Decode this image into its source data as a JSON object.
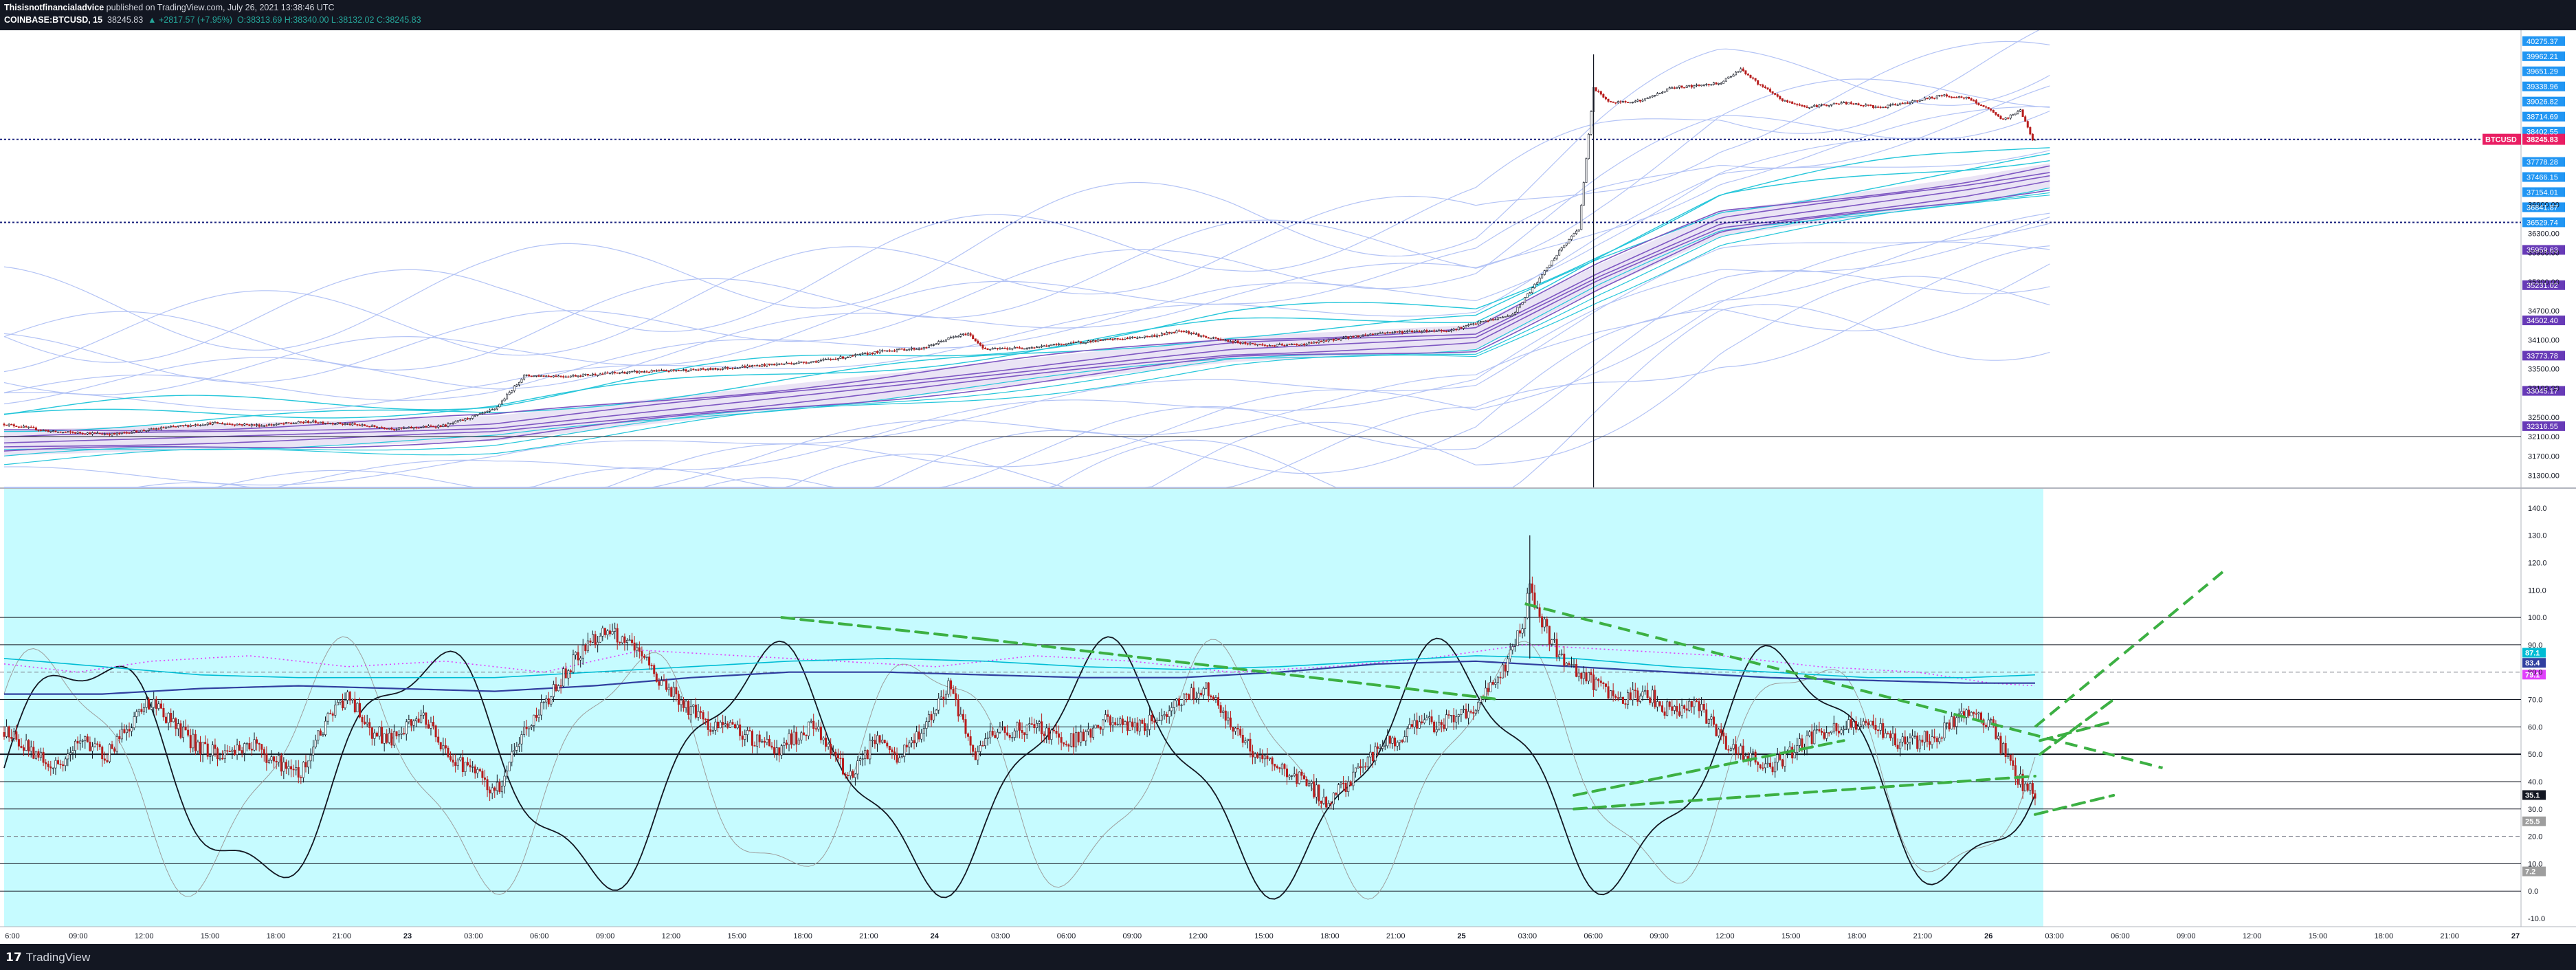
{
  "header": {
    "publisher": "Thisisnotfinancialadvice",
    "published_text": " published on TradingView.com, July 26, 2021 13:38:46 UTC",
    "symbol": "COINBASE:BTCUSD, 15",
    "last": "38245.83",
    "change": "▲ +2817.57 (+7.95%)",
    "ohlc": "O:38313.69 H:38340.00 L:38132.02 C:38245.83"
  },
  "footer": {
    "logo_text": "TradingView",
    "logo_mark": "17"
  },
  "colors": {
    "up": "#26a69a",
    "down": "#ef5350",
    "candle_up": "#26a69a",
    "candle_down": "#b71c1c",
    "band_light": "#b3c3f5",
    "band_cyan": "#26c6da",
    "band_purple": "#7e57c2",
    "osc_bg": "#c6fbff",
    "trend": "#3cb043",
    "price_tag": "#e91e63"
  },
  "chart_data": [
    {
      "type": "candlestick",
      "panel": "price",
      "symbol": "BTCUSD",
      "y_ticks": [
        31300,
        31700,
        32100,
        32500,
        33100,
        33500,
        34100,
        34700,
        35300,
        35900,
        36300,
        36900
      ],
      "ylim": [
        31050,
        40500
      ],
      "horizontal_levels": [
        38244,
        36529,
        32100
      ],
      "x_ticks": [
        "6:00",
        "09:00",
        "12:00",
        "15:00",
        "18:00",
        "21:00",
        "23",
        "03:00",
        "06:00",
        "09:00",
        "12:00",
        "15:00",
        "18:00",
        "21:00",
        "24",
        "03:00",
        "06:00",
        "09:00",
        "12:00",
        "15:00",
        "18:00",
        "21:00",
        "25",
        "03:00",
        "06:00",
        "09:00",
        "12:00",
        "15:00",
        "18:00",
        "21:00",
        "26",
        "03:00",
        "06:00",
        "09:00",
        "12:00",
        "15:00",
        "18:00",
        "21:00",
        "27"
      ],
      "close_path": [
        [
          0,
          32360
        ],
        [
          20,
          32200
        ],
        [
          45,
          32150
        ],
        [
          65,
          32280
        ],
        [
          85,
          32380
        ],
        [
          105,
          32330
        ],
        [
          125,
          32410
        ],
        [
          142,
          32350
        ],
        [
          160,
          32260
        ],
        [
          180,
          32330
        ],
        [
          200,
          32660
        ],
        [
          212,
          33360
        ],
        [
          230,
          33350
        ],
        [
          250,
          33420
        ],
        [
          270,
          33460
        ],
        [
          290,
          33500
        ],
        [
          310,
          33580
        ],
        [
          330,
          33650
        ],
        [
          345,
          33760
        ],
        [
          360,
          33880
        ],
        [
          375,
          33930
        ],
        [
          385,
          34130
        ],
        [
          393,
          34230
        ],
        [
          400,
          33900
        ],
        [
          420,
          33950
        ],
        [
          440,
          34060
        ],
        [
          455,
          34120
        ],
        [
          470,
          34190
        ],
        [
          480,
          34300
        ],
        [
          490,
          34150
        ],
        [
          500,
          34070
        ],
        [
          515,
          33980
        ],
        [
          530,
          34010
        ],
        [
          545,
          34130
        ],
        [
          560,
          34240
        ],
        [
          575,
          34280
        ],
        [
          590,
          34300
        ],
        [
          600,
          34440
        ],
        [
          615,
          34620
        ],
        [
          625,
          35300
        ],
        [
          635,
          36000
        ],
        [
          642,
          36400
        ],
        [
          648,
          39300
        ],
        [
          655,
          39000
        ],
        [
          668,
          39050
        ],
        [
          680,
          39320
        ],
        [
          690,
          39350
        ],
        [
          700,
          39420
        ],
        [
          708,
          39700
        ],
        [
          715,
          39400
        ],
        [
          725,
          39050
        ],
        [
          735,
          38910
        ],
        [
          750,
          39000
        ],
        [
          765,
          38900
        ],
        [
          780,
          39050
        ],
        [
          790,
          39150
        ],
        [
          800,
          39100
        ],
        [
          808,
          38900
        ],
        [
          815,
          38640
        ],
        [
          822,
          38850
        ],
        [
          827,
          38246
        ]
      ],
      "volatility_bands": {
        "base_path": [
          [
            0,
            31970
          ],
          [
            200,
            32270
          ],
          [
            500,
            33900
          ],
          [
            600,
            34150
          ],
          [
            650,
            35400
          ],
          [
            700,
            36500
          ],
          [
            800,
            37200
          ],
          [
            835,
            37500
          ]
        ],
        "purple_offsets": [
          -120,
          0,
          120,
          -260,
          260
        ],
        "cyan_offsets": [
          400,
          560,
          760
        ],
        "light_offsets": [
          900,
          1150,
          1400,
          1700,
          2000,
          2300,
          2600,
          2900,
          3200
        ]
      },
      "right_axis_labels": [
        {
          "value": 40275.37,
          "text": "40275.37",
          "color": "#2196f3"
        },
        {
          "value": 39962.21,
          "text": "39962.21",
          "color": "#2196f3"
        },
        {
          "value": 39651.29,
          "text": "39651.29",
          "color": "#2196f3"
        },
        {
          "value": 39338.96,
          "text": "39338.96",
          "color": "#2196f3"
        },
        {
          "value": 39026.82,
          "text": "39026.82",
          "color": "#2196f3"
        },
        {
          "value": 38714.69,
          "text": "38714.69",
          "color": "#2196f3"
        },
        {
          "value": 38402.55,
          "text": "38402.55",
          "color": "#2196f3"
        },
        {
          "value": 37778.28,
          "text": "37778.28",
          "color": "#2196f3"
        },
        {
          "value": 37466.15,
          "text": "37466.15",
          "color": "#2196f3"
        },
        {
          "value": 37154.01,
          "text": "37154.01",
          "color": "#2196f3"
        },
        {
          "value": 36841.87,
          "text": "36841.87",
          "color": "#2196f3"
        },
        {
          "value": 36529.74,
          "text": "36529.74",
          "color": "#2196f3"
        },
        {
          "value": 35959.63,
          "text": "35959.63",
          "color": "#673ab7"
        },
        {
          "value": 35231.02,
          "text": "35231.02",
          "color": "#673ab7"
        },
        {
          "value": 34502.4,
          "text": "34502.40",
          "color": "#673ab7"
        },
        {
          "value": 33773.78,
          "text": "33773.78",
          "color": "#673ab7"
        },
        {
          "value": 33045.17,
          "text": "33045.17",
          "color": "#673ab7"
        },
        {
          "value": 32316.55,
          "text": "32316.55",
          "color": "#673ab7"
        }
      ],
      "last_price_label": {
        "symbol": "BTCUSD",
        "value": 38245.83,
        "text": "38245.83"
      }
    },
    {
      "type": "oscillator",
      "panel": "rsi",
      "y_ticks": [
        -10,
        0,
        10,
        20,
        30,
        40,
        50,
        60,
        70,
        80,
        90,
        100,
        110,
        120,
        130,
        140
      ],
      "ylim": [
        -13,
        147
      ],
      "horizontal_levels": [
        100,
        90,
        80,
        70,
        60,
        50,
        40,
        30,
        20,
        10,
        0
      ],
      "dashed_levels": [
        80,
        20
      ],
      "rsi_path": [
        [
          0,
          58
        ],
        [
          10,
          52
        ],
        [
          22,
          45
        ],
        [
          32,
          55
        ],
        [
          42,
          50
        ],
        [
          52,
          62
        ],
        [
          60,
          70
        ],
        [
          70,
          60
        ],
        [
          80,
          52
        ],
        [
          90,
          50
        ],
        [
          100,
          54
        ],
        [
          110,
          48
        ],
        [
          120,
          42
        ],
        [
          130,
          60
        ],
        [
          140,
          72
        ],
        [
          150,
          58
        ],
        [
          160,
          55
        ],
        [
          170,
          65
        ],
        [
          180,
          50
        ],
        [
          190,
          45
        ],
        [
          200,
          35
        ],
        [
          210,
          55
        ],
        [
          225,
          75
        ],
        [
          235,
          88
        ],
        [
          245,
          95
        ],
        [
          255,
          90
        ],
        [
          265,
          80
        ],
        [
          275,
          70
        ],
        [
          285,
          62
        ],
        [
          300,
          58
        ],
        [
          315,
          52
        ],
        [
          330,
          60
        ],
        [
          345,
          42
        ],
        [
          355,
          55
        ],
        [
          365,
          48
        ],
        [
          375,
          60
        ],
        [
          385,
          75
        ],
        [
          395,
          50
        ],
        [
          405,
          58
        ],
        [
          420,
          60
        ],
        [
          435,
          55
        ],
        [
          450,
          62
        ],
        [
          465,
          60
        ],
        [
          480,
          70
        ],
        [
          490,
          75
        ],
        [
          500,
          60
        ],
        [
          510,
          50
        ],
        [
          520,
          45
        ],
        [
          530,
          40
        ],
        [
          540,
          32
        ],
        [
          550,
          42
        ],
        [
          560,
          52
        ],
        [
          575,
          60
        ],
        [
          590,
          62
        ],
        [
          600,
          68
        ],
        [
          610,
          78
        ],
        [
          618,
          95
        ],
        [
          622,
          110
        ],
        [
          630,
          92
        ],
        [
          640,
          80
        ],
        [
          650,
          75
        ],
        [
          660,
          70
        ],
        [
          670,
          72
        ],
        [
          680,
          65
        ],
        [
          690,
          70
        ],
        [
          700,
          55
        ],
        [
          710,
          50
        ],
        [
          720,
          45
        ],
        [
          730,
          52
        ],
        [
          740,
          58
        ],
        [
          750,
          60
        ],
        [
          760,
          62
        ],
        [
          770,
          55
        ],
        [
          780,
          55
        ],
        [
          790,
          58
        ],
        [
          800,
          65
        ],
        [
          810,
          60
        ],
        [
          816,
          50
        ],
        [
          822,
          40
        ],
        [
          828,
          35
        ]
      ],
      "ma_path": [
        [
          0,
          72
        ],
        [
          40,
          72
        ],
        [
          80,
          74
        ],
        [
          120,
          75
        ],
        [
          160,
          74
        ],
        [
          200,
          73
        ],
        [
          240,
          75
        ],
        [
          280,
          78
        ],
        [
          320,
          80
        ],
        [
          360,
          80
        ],
        [
          400,
          79
        ],
        [
          440,
          78
        ],
        [
          480,
          78
        ],
        [
          520,
          80
        ],
        [
          560,
          83
        ],
        [
          600,
          84
        ],
        [
          640,
          82
        ],
        [
          680,
          80
        ],
        [
          720,
          78
        ],
        [
          760,
          77
        ],
        [
          800,
          76
        ],
        [
          828,
          76
        ]
      ],
      "signal_path": [
        [
          0,
          85
        ],
        [
          40,
          82
        ],
        [
          80,
          79
        ],
        [
          120,
          78
        ],
        [
          160,
          78
        ],
        [
          200,
          78
        ],
        [
          240,
          80
        ],
        [
          280,
          82
        ],
        [
          320,
          84
        ],
        [
          360,
          85
        ],
        [
          400,
          84
        ],
        [
          440,
          82
        ],
        [
          480,
          81
        ],
        [
          520,
          82
        ],
        [
          560,
          84
        ],
        [
          600,
          86
        ],
        [
          640,
          85
        ],
        [
          680,
          82
        ],
        [
          720,
          80
        ],
        [
          760,
          78
        ],
        [
          800,
          78
        ],
        [
          828,
          79
        ]
      ],
      "dotted_path": [
        [
          0,
          83
        ],
        [
          30,
          80
        ],
        [
          60,
          84
        ],
        [
          100,
          86
        ],
        [
          140,
          82
        ],
        [
          180,
          84
        ],
        [
          220,
          80
        ],
        [
          260,
          88
        ],
        [
          300,
          86
        ],
        [
          340,
          84
        ],
        [
          380,
          82
        ],
        [
          420,
          86
        ],
        [
          460,
          84
        ],
        [
          500,
          80
        ],
        [
          540,
          82
        ],
        [
          580,
          85
        ],
        [
          620,
          90
        ],
        [
          660,
          88
        ],
        [
          700,
          86
        ],
        [
          740,
          82
        ],
        [
          780,
          80
        ],
        [
          810,
          76
        ],
        [
          828,
          75
        ]
      ],
      "wave_amplitude": 40,
      "trendlines": [
        [
          [
            317,
            100
          ],
          [
            400,
            92
          ]
        ],
        [
          [
            400,
            92
          ],
          [
            610,
            70
          ]
        ],
        [
          [
            640,
            30
          ],
          [
            828,
            42
          ]
        ],
        [
          [
            640,
            35
          ],
          [
            750,
            55
          ]
        ],
        [
          [
            830,
            50
          ],
          [
            860,
            70
          ]
        ],
        [
          [
            830,
            55
          ],
          [
            860,
            62
          ]
        ],
        [
          [
            828,
            28
          ],
          [
            860,
            35
          ]
        ]
      ],
      "right_axis_labels": [
        {
          "value": 87.1,
          "text": "87.1",
          "color": "#00bcd4"
        },
        {
          "value": 83.4,
          "text": "83.4",
          "color": "#303f9f"
        },
        {
          "value": 79.1,
          "text": "79.1",
          "color": "#e040fb"
        },
        {
          "value": 35.1,
          "text": "35.1",
          "color": "#131722"
        },
        {
          "value": 25.5,
          "text": "25.5",
          "color": "#9e9e9e"
        },
        {
          "value": 7.2,
          "text": "7.2",
          "color": "#9e9e9e"
        }
      ]
    }
  ]
}
